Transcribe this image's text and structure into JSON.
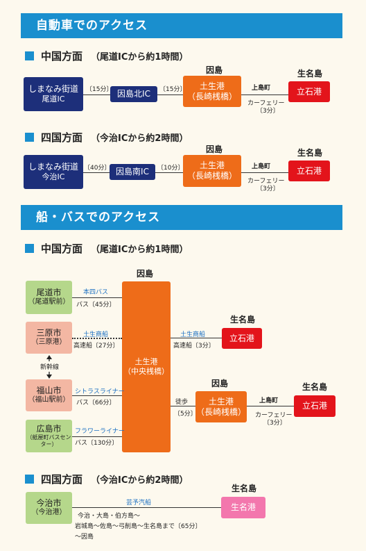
{
  "car": {
    "header": "自動車でのアクセス",
    "chugoku": {
      "title": "中国方面",
      "note": "（尾道ICから約1時間）",
      "start_line1": "しまなみ街道",
      "start_line2": "尾道IC",
      "seg1_time": "〔15分〕",
      "mid": "因島北IC",
      "seg2_time": "〔15分〕",
      "island_label": "因島",
      "port_line1": "土生港",
      "port_line2": "（長崎桟橋）",
      "via": "上島町",
      "ferry": "カーフェリー",
      "ferry_time": "〔3分〕",
      "dest_label": "生名島",
      "dest": "立石港"
    },
    "shikoku": {
      "title": "四国方面",
      "note": "（今治ICから約2時間）",
      "start_line1": "しまなみ街道",
      "start_line2": "今治IC",
      "seg1_time": "〔40分〕",
      "mid": "因島南IC",
      "seg2_time": "〔10分〕",
      "island_label": "因島",
      "port_line1": "土生港",
      "port_line2": "（長崎桟橋）",
      "via": "上島町",
      "ferry": "カーフェリー",
      "ferry_time": "〔3分〕",
      "dest_label": "生名島",
      "dest": "立石港"
    }
  },
  "ship": {
    "header": "船・バスでのアクセス",
    "chugoku": {
      "title": "中国方面",
      "note": "（尾道ICから約1時間）",
      "island_label": "因島",
      "hub_line1": "土生港",
      "hub_line2": "（中央桟橋）",
      "origins": [
        {
          "line1": "尾道市",
          "line2": "（尾道駅前）",
          "route": "本四バス",
          "detail": "バス〔45分〕"
        },
        {
          "line1": "三原市",
          "line2": "（三原港）",
          "route": "土生商船",
          "detail": "高速船〔27分〕"
        },
        {
          "line1": "福山市",
          "line2": "（福山駅前）",
          "route": "シトラスライナー",
          "detail": "バス〔66分〕"
        },
        {
          "line1": "広島市",
          "line2": "（紙屋町バスセンター）",
          "route": "フラワーライナー",
          "detail": "バス〔130分〕"
        }
      ],
      "shinkansen": "新幹線",
      "right_route": "土生商船",
      "right_detail": "高速船〔3分〕",
      "right_dest_label": "生名島",
      "right_dest": "立石港",
      "walk": "徒歩",
      "walk_time": "〔5分〕",
      "island_label2": "因島",
      "port_line1": "土生港",
      "port_line2": "（長崎桟橋）",
      "via": "上島町",
      "ferry": "カーフェリー",
      "ferry_time": "〔3分〕",
      "dest_label": "生名島",
      "dest": "立石港"
    },
    "shikoku": {
      "title": "四国方面",
      "note": "（今治ICから約2時間）",
      "start_line1": "今治市",
      "start_line2": "（今治港）",
      "route": "芸予汽船",
      "detail_line1": "今治・大島・伯方島〜",
      "detail_line2": "岩城島〜佐島〜弓削島〜生名島まで〔65分〕",
      "detail_line3": "〜因島",
      "dest_label": "生名島",
      "dest": "生名港"
    }
  }
}
